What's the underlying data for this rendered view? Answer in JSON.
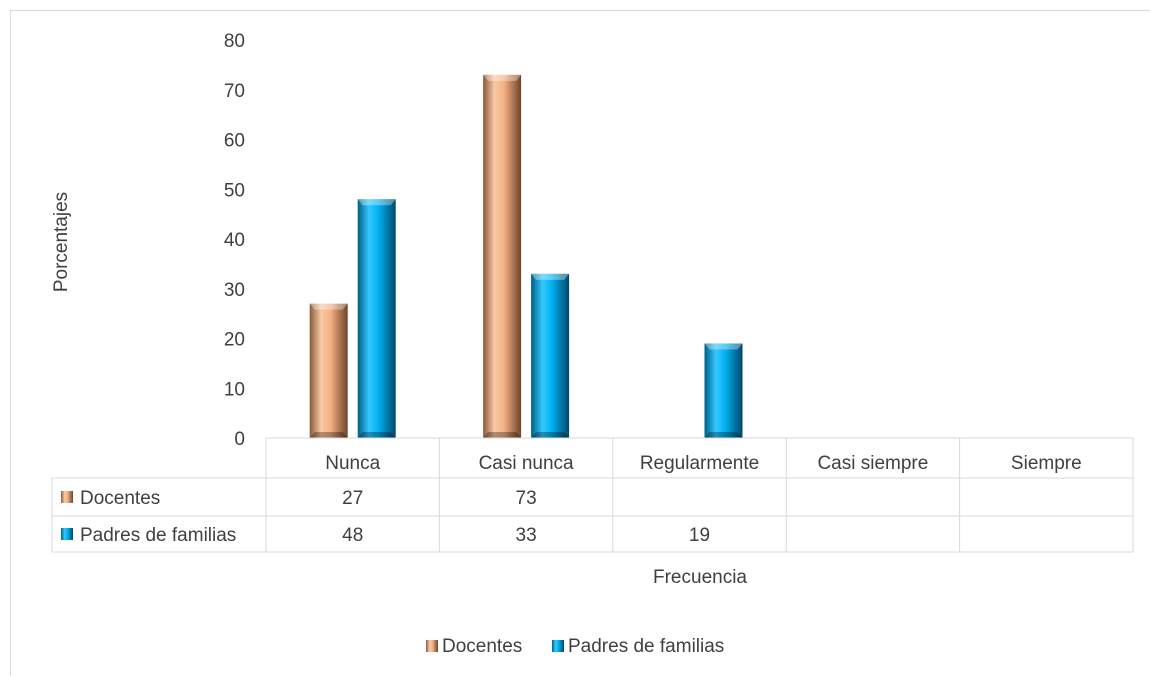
{
  "chart_data": {
    "type": "bar",
    "title": "",
    "xlabel": "Frecuencia",
    "ylabel": "Porcentajes",
    "ylim": [
      0,
      80
    ],
    "yticks": [
      0,
      10,
      20,
      30,
      40,
      50,
      60,
      70,
      80
    ],
    "grid": false,
    "legend_position": "bottom",
    "data_table": true,
    "categories": [
      "Nunca",
      "Casi nunca",
      "Regularmente",
      "Casi siempre",
      "Siempre"
    ],
    "series": [
      {
        "name": "Docentes",
        "color": "#f4b183",
        "values": [
          27,
          73,
          null,
          null,
          null
        ]
      },
      {
        "name": "Padres de familias",
        "color": "#00b0f0",
        "values": [
          48,
          33,
          19,
          null,
          null
        ]
      }
    ]
  }
}
